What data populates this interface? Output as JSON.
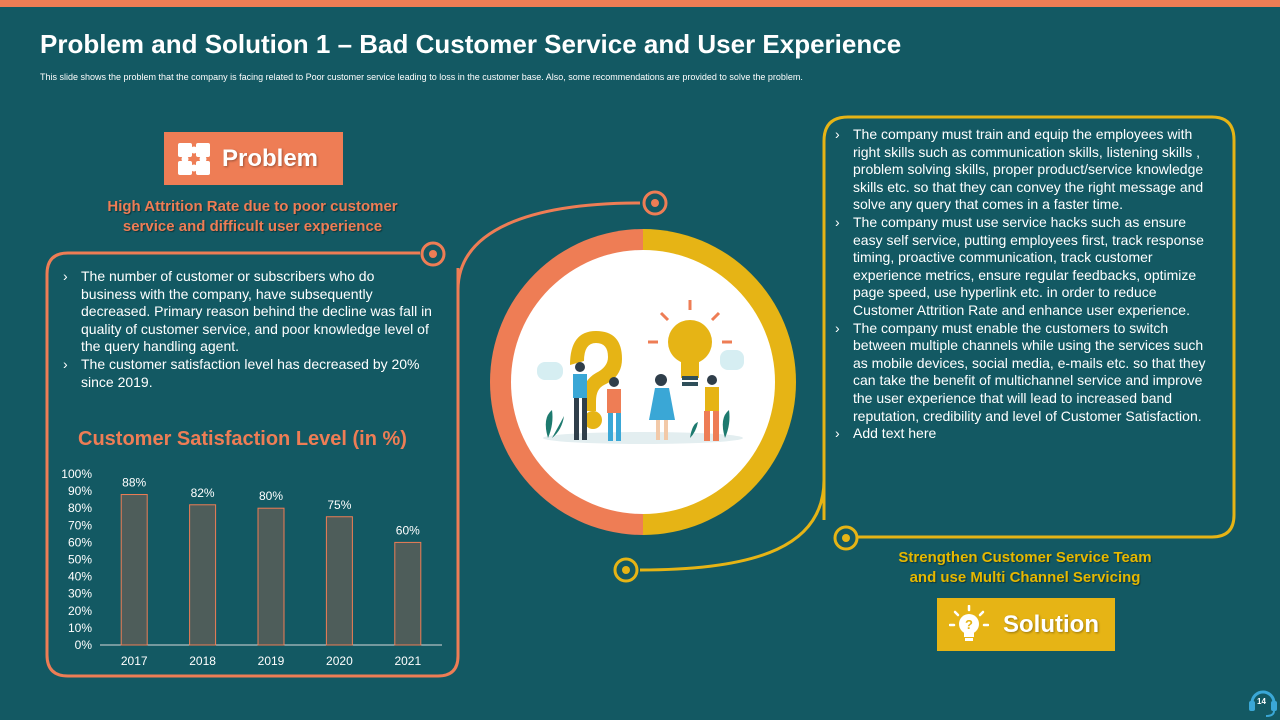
{
  "slide": {
    "title": "Problem and Solution 1 – Bad Customer Service and User Experience",
    "subtitle": "This slide shows the problem that the company is facing related to Poor customer service leading to loss in the customer base. Also, some recommendations are provided to solve the problem.",
    "page_number": "14"
  },
  "colors": {
    "background": "#135963",
    "accent_orange": "#ee7d55",
    "accent_yellow": "#e6b415",
    "bar_fill": "#4e5d5a"
  },
  "problem": {
    "badge_label": "Problem",
    "heading_line1": "High Attrition Rate due to poor customer",
    "heading_line2": "service and difficult  user experience",
    "bullets": [
      "The number of customer or subscribers who do business with the company, have subsequently decreased. Primary reason behind the decline was fall in quality  of customer service, and poor knowledge level of the query handling agent.",
      "The customer satisfaction level has decreased by 20% since 2019."
    ]
  },
  "solution": {
    "badge_label": "Solution",
    "heading_line1": "Strengthen Customer Service Team",
    "heading_line2": "and use Multi Channel Servicing",
    "bullets": [
      "The company must train and equip the employees with right skills such as communication skills, listening skills , problem solving skills, proper product/service knowledge skills etc. so that they can convey the right message and solve any query that comes in a faster time.",
      "The company must use service hacks such as ensure easy self service, putting employees first, track response timing, proactive communication, track customer experience metrics, ensure regular feedbacks, optimize page speed, use hyperlink etc. in order to reduce Customer Attrition Rate and enhance user experience.",
      "The company must enable the customers to switch between multiple channels while using the services such as mobile devices, social media, e-mails etc. so that they can take the benefit of multichannel service and improve the user experience that will lead to increased band reputation, credibility and level of Customer Satisfaction.",
      "Add text here"
    ]
  },
  "chart_data": {
    "type": "bar",
    "title": "Customer Satisfaction  Level (in %)",
    "categories": [
      "2017",
      "2018",
      "2019",
      "2020",
      "2021"
    ],
    "values": [
      88,
      82,
      80,
      75,
      60
    ],
    "data_labels": [
      "88%",
      "82%",
      "80%",
      "75%",
      "60%"
    ],
    "ylim": [
      0,
      100
    ],
    "yticks": [
      "0%",
      "10%",
      "20%",
      "30%",
      "40%",
      "50%",
      "60%",
      "70%",
      "80%",
      "90%",
      "100%"
    ],
    "xlabel": "",
    "ylabel": "",
    "grid": false
  }
}
